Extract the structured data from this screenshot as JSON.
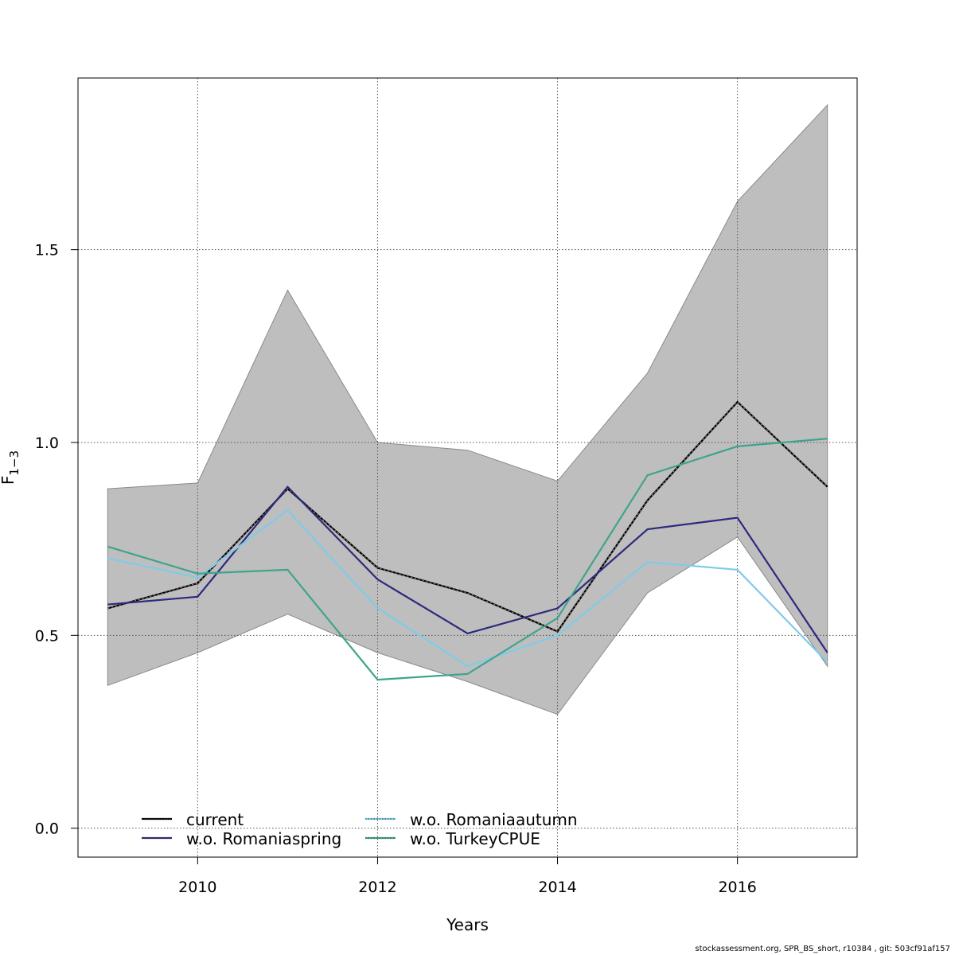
{
  "chart_data": {
    "type": "line",
    "xlabel": "Years",
    "ylabel": {
      "main": "F",
      "sub": "1−3"
    },
    "xlim": [
      2008.67,
      2017.33
    ],
    "ylim": [
      -0.075,
      1.945
    ],
    "xticks": [
      2010,
      2012,
      2014,
      2016
    ],
    "yticks": [
      0.0,
      0.5,
      1.0,
      1.5
    ],
    "ytick_labels": [
      "0.0",
      "0.5",
      "1.0",
      "1.5"
    ],
    "grid": true,
    "x": [
      2009,
      2010,
      2011,
      2012,
      2013,
      2014,
      2015,
      2016,
      2017
    ],
    "confidence_band": {
      "lower": [
        0.37,
        0.455,
        0.555,
        0.455,
        0.38,
        0.295,
        0.61,
        0.755,
        0.42
      ],
      "upper": [
        0.88,
        0.895,
        1.395,
        1.0,
        0.98,
        0.9,
        1.18,
        1.625,
        1.875
      ],
      "color": "#bebebe"
    },
    "series": [
      {
        "name": "current",
        "color": "#000000",
        "values": [
          0.57,
          0.635,
          0.88,
          0.675,
          0.61,
          0.51,
          0.85,
          1.105,
          0.885
        ]
      },
      {
        "name": "w.o. Romaniaspring",
        "color": "#2d2a7c",
        "values": [
          0.58,
          0.6,
          0.885,
          0.645,
          0.505,
          0.57,
          0.775,
          0.805,
          0.455
        ]
      },
      {
        "name": "w.o. Romaniaautumn",
        "color": "#7fcbe8",
        "values": [
          0.7,
          0.65,
          0.825,
          0.57,
          0.42,
          0.5,
          0.69,
          0.67,
          0.43
        ]
      },
      {
        "name": "w.o. TurkeyCPUE",
        "color": "#3fa48c",
        "values": [
          0.73,
          0.66,
          0.67,
          0.385,
          0.4,
          0.545,
          0.915,
          0.99,
          1.01
        ]
      }
    ],
    "legend_position": "bottom-left"
  },
  "footer": "stockassessment.org, SPR_BS_short, r10384 , git: 503cf91af157"
}
